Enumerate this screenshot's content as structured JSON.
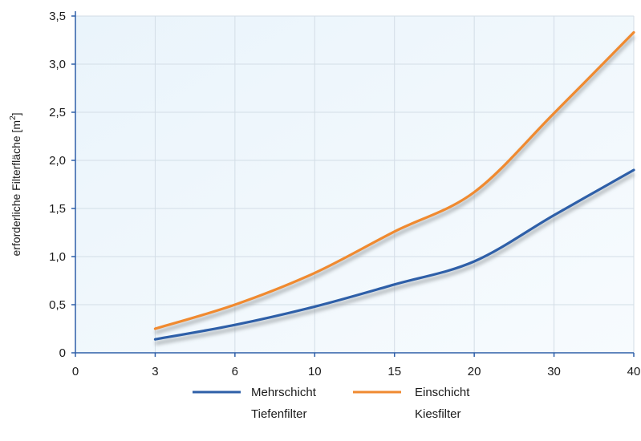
{
  "chart_data": {
    "type": "line",
    "categories": [
      "0",
      "3",
      "6",
      "10",
      "15",
      "20",
      "30",
      "40"
    ],
    "y_ticks": [
      "0",
      "0,5",
      "1,0",
      "1,5",
      "2,0",
      "2,5",
      "3,0",
      "3,5"
    ],
    "ylim": [
      0,
      3.5
    ],
    "ylabel": "erforderliche Filterfläche [m",
    "ylabel_sup": "2",
    "ylabel_end": "]",
    "xlabel": "",
    "grid": true,
    "legend_position": "bottom-center",
    "series": [
      {
        "name_line1": "Mehrschicht",
        "name_line2": "Tiefenfilter",
        "color": "#2e5fa8",
        "points": [
          {
            "x": "3",
            "y": 0.14
          },
          {
            "x": "6",
            "y": 0.29
          },
          {
            "x": "10",
            "y": 0.48
          },
          {
            "x": "15",
            "y": 0.71
          },
          {
            "x": "20",
            "y": 0.95
          },
          {
            "x": "30",
            "y": 1.43
          },
          {
            "x": "40",
            "y": 1.9
          }
        ]
      },
      {
        "name_line1": "Einschicht",
        "name_line2": "Kiesfilter",
        "color": "#f08a30",
        "points": [
          {
            "x": "3",
            "y": 0.25
          },
          {
            "x": "6",
            "y": 0.5
          },
          {
            "x": "10",
            "y": 0.83
          },
          {
            "x": "15",
            "y": 1.26
          },
          {
            "x": "20",
            "y": 1.67
          },
          {
            "x": "30",
            "y": 2.49
          },
          {
            "x": "40",
            "y": 3.33
          }
        ]
      }
    ]
  }
}
